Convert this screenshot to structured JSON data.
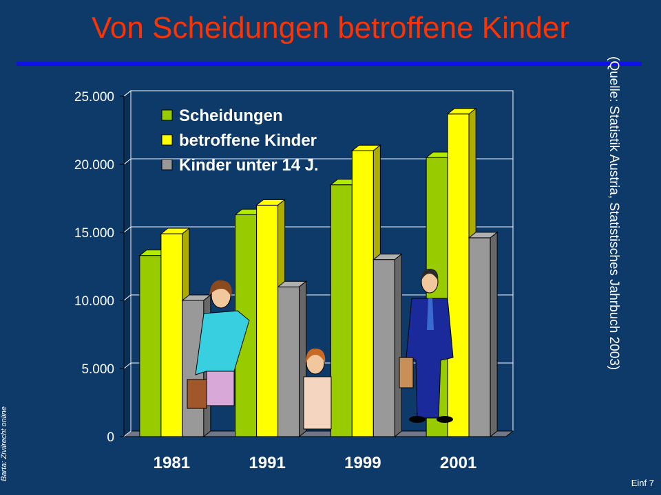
{
  "slide": {
    "title": "Von Scheidungen betroffene Kinder",
    "source": "(Quelle: Statistik Austria, Statistisches Jahrbuch 2003)",
    "footer_left": "Barta: Zivilrecht online",
    "footer_right": "Einf 7"
  },
  "colors": {
    "background": "#0e3a6a",
    "title": "#ff3300",
    "rule": "#1010e8",
    "plot_area": "#0e3a6a",
    "gridline": "#ffffff",
    "axis_frame": "#ffff00"
  },
  "chart_data": {
    "type": "bar",
    "style": "3d-clustered",
    "categories": [
      "1981",
      "1991",
      "1999",
      "2001"
    ],
    "series": [
      {
        "name": "Scheidungen",
        "color": "#99cc00",
        "values": [
          13300,
          16300,
          18500,
          20500
        ]
      },
      {
        "name": "betroffene Kinder",
        "color": "#ffff00",
        "values": [
          14900,
          17000,
          21000,
          23700
        ]
      },
      {
        "name": "Kinder unter 14 J.",
        "color": "#999999",
        "values": [
          10000,
          11000,
          13000,
          14600
        ]
      }
    ],
    "y_ticks": [
      "0",
      "5.000",
      "10.000",
      "15.000",
      "20.000",
      "25.000"
    ],
    "ylim": [
      0,
      25000
    ],
    "grid": true,
    "legend_position": "top-left",
    "decorations": [
      "woman-clipart",
      "girl-clipart",
      "man-clipart"
    ]
  }
}
